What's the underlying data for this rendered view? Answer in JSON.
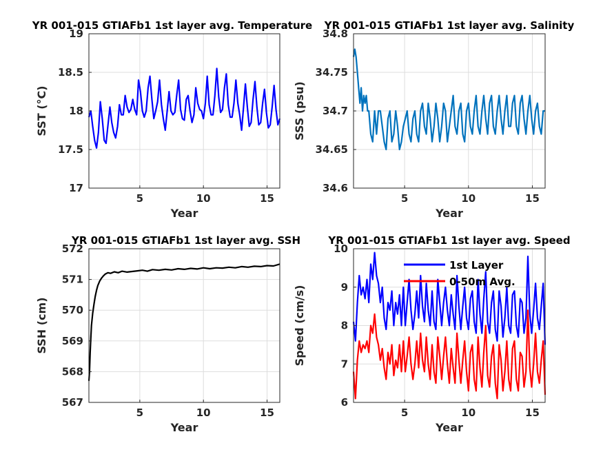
{
  "figure": {
    "background": "#ffffff",
    "grid_color": "#dddddd",
    "axis_color": "#262626"
  },
  "chart_data": [
    {
      "id": "sst",
      "type": "line",
      "title": "YR 001-015 GTIAFb1 1st layer avg. Temperature",
      "xlabel": "Year",
      "ylabel": "SST (°C)",
      "xlim": [
        1,
        16
      ],
      "ylim": [
        17,
        19
      ],
      "xticks": [
        5,
        10,
        15
      ],
      "yticks": [
        17,
        17.5,
        18,
        18.5,
        19
      ],
      "ytick_labels": [
        "17",
        "17.5",
        "18",
        "18.5",
        "19"
      ],
      "grid": true,
      "legend": null,
      "series": [
        {
          "color": "#0000ff",
          "x": [
            1.0,
            1.15,
            1.3,
            1.45,
            1.6,
            1.75,
            1.9,
            2.05,
            2.2,
            2.35,
            2.5,
            2.65,
            2.8,
            2.95,
            3.1,
            3.25,
            3.4,
            3.55,
            3.7,
            3.85,
            4.0,
            4.15,
            4.3,
            4.45,
            4.6,
            4.75,
            4.9,
            5.05,
            5.2,
            5.35,
            5.5,
            5.65,
            5.8,
            5.95,
            6.1,
            6.25,
            6.4,
            6.55,
            6.7,
            6.85,
            7.0,
            7.15,
            7.3,
            7.45,
            7.6,
            7.75,
            7.9,
            8.05,
            8.2,
            8.35,
            8.5,
            8.65,
            8.8,
            8.95,
            9.1,
            9.25,
            9.4,
            9.55,
            9.7,
            9.85,
            10.0,
            10.15,
            10.3,
            10.45,
            10.6,
            10.75,
            10.9,
            11.05,
            11.2,
            11.35,
            11.5,
            11.65,
            11.8,
            11.95,
            12.1,
            12.25,
            12.4,
            12.55,
            12.7,
            12.85,
            13.0,
            13.15,
            13.3,
            13.45,
            13.6,
            13.75,
            13.9,
            14.05,
            14.2,
            14.35,
            14.5,
            14.65,
            14.8,
            14.95,
            15.1,
            15.25,
            15.4,
            15.55,
            15.7,
            15.85,
            16.0
          ],
          "values": [
            17.92,
            18.0,
            17.8,
            17.62,
            17.52,
            17.72,
            18.12,
            17.9,
            17.62,
            17.58,
            17.82,
            18.05,
            17.85,
            17.72,
            17.65,
            17.8,
            18.08,
            17.95,
            17.95,
            18.2,
            18.05,
            17.98,
            18.02,
            18.15,
            18.02,
            17.95,
            18.4,
            18.25,
            18.0,
            17.92,
            18.0,
            18.3,
            18.45,
            18.15,
            17.9,
            18.0,
            18.12,
            18.4,
            18.08,
            17.9,
            17.75,
            18.0,
            18.25,
            18.0,
            17.95,
            17.98,
            18.2,
            18.4,
            18.02,
            17.9,
            17.88,
            18.15,
            18.2,
            18.0,
            17.85,
            17.95,
            18.3,
            18.1,
            18.02,
            18.0,
            17.9,
            18.1,
            18.45,
            18.08,
            17.95,
            17.95,
            18.2,
            18.55,
            18.18,
            17.98,
            18.02,
            18.3,
            18.48,
            18.08,
            17.92,
            17.92,
            18.1,
            18.4,
            18.1,
            17.95,
            17.75,
            18.05,
            18.35,
            18.05,
            17.8,
            17.85,
            18.15,
            18.38,
            18.05,
            17.82,
            17.85,
            18.1,
            18.28,
            17.98,
            17.78,
            17.82,
            18.05,
            18.33,
            18.02,
            17.82,
            17.9
          ]
        }
      ]
    },
    {
      "id": "sss",
      "type": "line",
      "title": "YR 001-015 GTIAFb1 1st layer avg. Salinity",
      "xlabel": "Year",
      "ylabel": "SSS (psu)",
      "xlim": [
        1,
        16
      ],
      "ylim": [
        34.6,
        34.8
      ],
      "xticks": [
        5,
        10,
        15
      ],
      "yticks": [
        34.6,
        34.65,
        34.7,
        34.75,
        34.8
      ],
      "ytick_labels": [
        "34.6",
        "34.65",
        "34.7",
        "34.75",
        "34.8"
      ],
      "grid": true,
      "legend": null,
      "series": [
        {
          "color": "#0072bd",
          "x": [
            1.0,
            1.1,
            1.2,
            1.3,
            1.4,
            1.5,
            1.6,
            1.7,
            1.8,
            1.9,
            2.0,
            2.1,
            2.2,
            2.35,
            2.5,
            2.65,
            2.8,
            2.95,
            3.1,
            3.25,
            3.4,
            3.55,
            3.7,
            3.85,
            4.0,
            4.15,
            4.3,
            4.45,
            4.6,
            4.75,
            4.9,
            5.05,
            5.2,
            5.35,
            5.5,
            5.65,
            5.8,
            5.95,
            6.1,
            6.25,
            6.4,
            6.55,
            6.7,
            6.85,
            7.0,
            7.15,
            7.3,
            7.45,
            7.6,
            7.75,
            7.9,
            8.05,
            8.2,
            8.35,
            8.5,
            8.65,
            8.8,
            8.95,
            9.1,
            9.25,
            9.4,
            9.55,
            9.7,
            9.85,
            10.0,
            10.15,
            10.3,
            10.45,
            10.6,
            10.75,
            10.9,
            11.05,
            11.2,
            11.35,
            11.5,
            11.65,
            11.8,
            11.95,
            12.1,
            12.25,
            12.4,
            12.55,
            12.7,
            12.85,
            13.0,
            13.15,
            13.3,
            13.45,
            13.6,
            13.75,
            13.9,
            14.05,
            14.2,
            14.35,
            14.5,
            14.65,
            14.8,
            14.95,
            15.1,
            15.25,
            15.4,
            15.55,
            15.7,
            15.85,
            16.0
          ],
          "values": [
            34.77,
            34.78,
            34.77,
            34.75,
            34.73,
            34.71,
            34.73,
            34.7,
            34.72,
            34.71,
            34.72,
            34.7,
            34.7,
            34.67,
            34.66,
            34.7,
            34.67,
            34.7,
            34.7,
            34.68,
            34.66,
            34.65,
            34.69,
            34.7,
            34.66,
            34.67,
            34.7,
            34.68,
            34.65,
            34.66,
            34.68,
            34.69,
            34.7,
            34.67,
            34.66,
            34.69,
            34.7,
            34.67,
            34.66,
            34.7,
            34.71,
            34.68,
            34.67,
            34.71,
            34.69,
            34.66,
            34.68,
            34.71,
            34.69,
            34.66,
            34.68,
            34.71,
            34.7,
            34.66,
            34.68,
            34.7,
            34.72,
            34.68,
            34.67,
            34.7,
            34.71,
            34.67,
            34.66,
            34.7,
            34.71,
            34.68,
            34.67,
            34.7,
            34.72,
            34.68,
            34.67,
            34.7,
            34.72,
            34.69,
            34.67,
            34.71,
            34.72,
            34.68,
            34.67,
            34.7,
            34.72,
            34.69,
            34.67,
            34.7,
            34.72,
            34.68,
            34.68,
            34.71,
            34.72,
            34.68,
            34.67,
            34.71,
            34.72,
            34.69,
            34.67,
            34.7,
            34.72,
            34.69,
            34.67,
            34.7,
            34.71,
            34.68,
            34.67,
            34.7,
            34.7
          ]
        }
      ]
    },
    {
      "id": "ssh",
      "type": "line",
      "title": "YR 001-015 GTIAFb1 1st layer avg. SSH",
      "xlabel": "Year",
      "ylabel": "SSH (cm)",
      "xlim": [
        1,
        16
      ],
      "ylim": [
        567,
        572
      ],
      "xticks": [
        5,
        10,
        15
      ],
      "yticks": [
        567,
        568,
        569,
        570,
        571,
        572
      ],
      "ytick_labels": [
        "567",
        "568",
        "569",
        "570",
        "571",
        "572"
      ],
      "grid": true,
      "legend": null,
      "series": [
        {
          "color": "#000000",
          "x": [
            1.0,
            1.05,
            1.1,
            1.15,
            1.2,
            1.3,
            1.4,
            1.5,
            1.6,
            1.7,
            1.85,
            2.0,
            2.15,
            2.3,
            2.5,
            2.7,
            3.0,
            3.3,
            3.6,
            4.0,
            4.4,
            4.8,
            5.2,
            5.6,
            6.0,
            6.5,
            7.0,
            7.5,
            8.0,
            8.5,
            9.0,
            9.5,
            10.0,
            10.5,
            11.0,
            11.5,
            12.0,
            12.5,
            13.0,
            13.5,
            14.0,
            14.5,
            15.0,
            15.5,
            16.0
          ],
          "values": [
            567.7,
            568.0,
            568.6,
            569.1,
            569.5,
            569.9,
            570.2,
            570.45,
            570.65,
            570.8,
            570.95,
            571.05,
            571.12,
            571.18,
            571.22,
            571.2,
            571.25,
            571.22,
            571.27,
            571.24,
            571.26,
            571.28,
            571.3,
            571.27,
            571.32,
            571.3,
            571.33,
            571.31,
            571.35,
            571.33,
            571.36,
            571.34,
            571.38,
            571.35,
            571.38,
            571.37,
            571.4,
            571.38,
            571.42,
            571.4,
            571.43,
            571.42,
            571.45,
            571.44,
            571.5
          ]
        }
      ]
    },
    {
      "id": "speed",
      "type": "line",
      "title": "YR 001-015 GTIAFb1 1st layer avg. Speed",
      "xlabel": "Year",
      "ylabel": "Speed (cm/s)",
      "xlim": [
        1,
        16
      ],
      "ylim": [
        6,
        10
      ],
      "xticks": [
        5,
        10,
        15
      ],
      "yticks": [
        6,
        7,
        8,
        9,
        10
      ],
      "ytick_labels": [
        "6",
        "7",
        "8",
        "9",
        "10"
      ],
      "grid": true,
      "legend": "top-right",
      "series": [
        {
          "name": "1st Layer",
          "color": "#0000ff",
          "x": [
            1.0,
            1.15,
            1.3,
            1.45,
            1.6,
            1.75,
            1.9,
            2.05,
            2.2,
            2.35,
            2.5,
            2.65,
            2.8,
            2.95,
            3.1,
            3.25,
            3.4,
            3.55,
            3.7,
            3.85,
            4.0,
            4.15,
            4.3,
            4.45,
            4.6,
            4.75,
            4.9,
            5.05,
            5.2,
            5.35,
            5.5,
            5.65,
            5.8,
            5.95,
            6.1,
            6.25,
            6.4,
            6.55,
            6.7,
            6.85,
            7.0,
            7.15,
            7.3,
            7.45,
            7.6,
            7.75,
            7.9,
            8.05,
            8.2,
            8.35,
            8.5,
            8.65,
            8.8,
            8.95,
            9.1,
            9.25,
            9.4,
            9.55,
            9.7,
            9.85,
            10.0,
            10.15,
            10.3,
            10.45,
            10.6,
            10.75,
            10.9,
            11.05,
            11.2,
            11.35,
            11.5,
            11.65,
            11.8,
            11.95,
            12.1,
            12.25,
            12.4,
            12.55,
            12.7,
            12.85,
            13.0,
            13.15,
            13.3,
            13.45,
            13.6,
            13.75,
            13.9,
            14.05,
            14.2,
            14.35,
            14.5,
            14.65,
            14.8,
            14.95,
            15.1,
            15.25,
            15.4,
            15.55,
            15.7,
            15.85,
            16.0
          ],
          "values": [
            8.1,
            7.6,
            8.6,
            9.3,
            8.8,
            9.0,
            8.7,
            9.2,
            8.6,
            9.6,
            9.2,
            9.9,
            9.3,
            9.1,
            8.6,
            9.0,
            8.2,
            7.9,
            8.6,
            8.4,
            8.9,
            8.0,
            8.6,
            8.3,
            8.8,
            8.0,
            9.0,
            8.0,
            8.6,
            9.2,
            8.4,
            7.9,
            8.3,
            8.9,
            8.2,
            9.3,
            8.5,
            8.1,
            9.1,
            8.4,
            8.0,
            8.9,
            8.1,
            7.9,
            9.2,
            8.6,
            8.0,
            8.6,
            9.0,
            8.4,
            8.0,
            8.8,
            8.3,
            7.9,
            9.3,
            8.5,
            7.9,
            8.5,
            9.0,
            8.2,
            7.9,
            8.7,
            8.9,
            8.1,
            7.8,
            9.2,
            8.3,
            7.8,
            8.7,
            9.4,
            8.1,
            7.8,
            8.6,
            8.9,
            7.9,
            7.6,
            8.9,
            8.5,
            7.7,
            8.2,
            9.0,
            8.0,
            7.8,
            8.8,
            8.9,
            8.0,
            7.7,
            8.7,
            8.6,
            7.8,
            8.2,
            9.8,
            8.3,
            7.8,
            8.4,
            9.1,
            8.2,
            7.9,
            8.5,
            9.1,
            7.5
          ]
        },
        {
          "name": "0-50m Avg.",
          "color": "#ff0000",
          "x": [
            1.0,
            1.15,
            1.3,
            1.45,
            1.6,
            1.75,
            1.9,
            2.05,
            2.2,
            2.35,
            2.5,
            2.65,
            2.8,
            2.95,
            3.1,
            3.25,
            3.4,
            3.55,
            3.7,
            3.85,
            4.0,
            4.15,
            4.3,
            4.45,
            4.6,
            4.75,
            4.9,
            5.05,
            5.2,
            5.35,
            5.5,
            5.65,
            5.8,
            5.95,
            6.1,
            6.25,
            6.4,
            6.55,
            6.7,
            6.85,
            7.0,
            7.15,
            7.3,
            7.45,
            7.6,
            7.75,
            7.9,
            8.05,
            8.2,
            8.35,
            8.5,
            8.65,
            8.8,
            8.95,
            9.1,
            9.25,
            9.4,
            9.55,
            9.7,
            9.85,
            10.0,
            10.15,
            10.3,
            10.45,
            10.6,
            10.75,
            10.9,
            11.05,
            11.2,
            11.35,
            11.5,
            11.65,
            11.8,
            11.95,
            12.1,
            12.25,
            12.4,
            12.55,
            12.7,
            12.85,
            13.0,
            13.15,
            13.3,
            13.45,
            13.6,
            13.75,
            13.9,
            14.05,
            14.2,
            14.35,
            14.5,
            14.65,
            14.8,
            14.95,
            15.1,
            15.25,
            15.4,
            15.55,
            15.7,
            15.85,
            16.0
          ],
          "values": [
            6.8,
            6.1,
            7.1,
            7.6,
            7.3,
            7.5,
            7.4,
            7.6,
            7.3,
            8.0,
            7.8,
            8.3,
            7.7,
            7.5,
            7.1,
            7.4,
            6.9,
            6.6,
            7.3,
            7.0,
            7.5,
            6.7,
            7.1,
            6.9,
            7.5,
            6.8,
            7.6,
            6.8,
            7.2,
            7.7,
            7.0,
            6.6,
            7.0,
            7.6,
            6.9,
            7.8,
            7.1,
            6.8,
            7.7,
            7.0,
            6.6,
            7.5,
            6.8,
            6.5,
            7.7,
            7.2,
            6.6,
            7.2,
            7.7,
            7.0,
            6.5,
            7.4,
            6.9,
            6.5,
            7.8,
            7.1,
            6.5,
            7.1,
            7.6,
            6.8,
            6.3,
            7.3,
            7.5,
            6.6,
            6.3,
            7.7,
            6.9,
            6.4,
            7.3,
            8.0,
            6.7,
            6.4,
            7.2,
            7.5,
            6.5,
            6.1,
            7.5,
            7.1,
            6.3,
            6.8,
            7.6,
            6.6,
            6.3,
            7.4,
            7.6,
            6.6,
            6.3,
            7.3,
            7.2,
            6.4,
            6.8,
            8.4,
            6.9,
            6.4,
            7.0,
            7.8,
            6.8,
            6.5,
            7.1,
            7.6,
            6.2
          ]
        }
      ]
    }
  ]
}
